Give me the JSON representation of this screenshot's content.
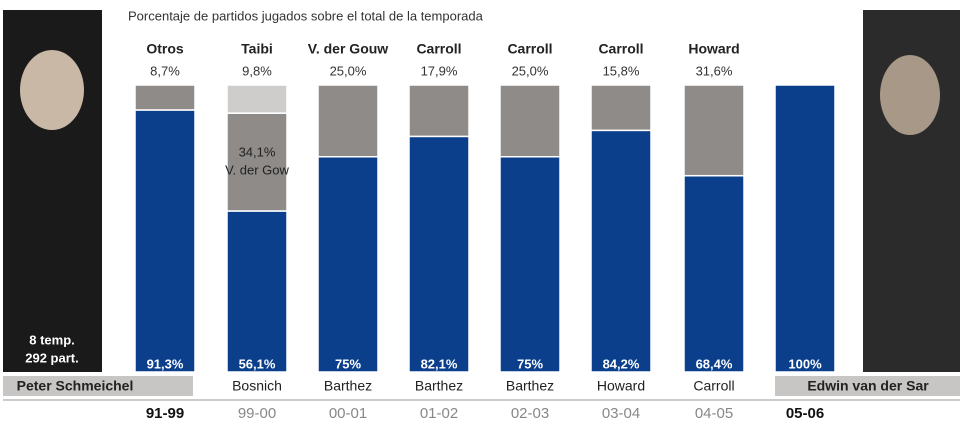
{
  "chart_data": {
    "type": "stacked-bar",
    "title": "Porcentaje de partidos jugados sobre el total de la temporada",
    "categories": [
      "91-99",
      "99-00",
      "00-01",
      "01-02",
      "02-03",
      "03-04",
      "04-05",
      "05-06"
    ],
    "ylim": [
      0,
      100
    ],
    "annotations": [
      "8 temp.",
      "292 part."
    ],
    "series": [
      {
        "color": "#0b3f8c",
        "values": [
          91.3,
          56.1,
          75,
          82.1,
          75,
          84.2,
          68.4,
          100
        ],
        "value_labels": [
          "91,3%",
          "56,1%",
          "75%",
          "82,1%",
          "75%",
          "84,2%",
          "68,4%",
          "100%"
        ],
        "keepers": [
          "Peter Schmeichel",
          "Bosnich",
          "Barthez",
          "Barthez",
          "Barthez",
          "Howard",
          "Carroll",
          "Edwin van der Sar"
        ]
      },
      {
        "color": "#8e8b89",
        "values": [
          8.7,
          34.1,
          25.0,
          17.9,
          25.0,
          15.8,
          31.6,
          null
        ],
        "value_labels": [
          "8,7%",
          "34,1%",
          "25,0%",
          "17,9%",
          "25,0%",
          "15,8%",
          "31,6%",
          null
        ],
        "keepers": [
          "Otros",
          "V. der Gow",
          "V. der Gouw",
          "Carroll",
          "Carroll",
          "Carroll",
          "Howard",
          null
        ]
      },
      {
        "color": "#cfcdcb",
        "values": [
          null,
          9.8,
          null,
          null,
          null,
          null,
          null,
          null
        ],
        "value_labels": [
          null,
          "9,8%",
          null,
          null,
          null,
          null,
          null,
          null
        ],
        "keepers": [
          null,
          "Taibi",
          null,
          null,
          null,
          null,
          null,
          null
        ]
      }
    ]
  }
}
